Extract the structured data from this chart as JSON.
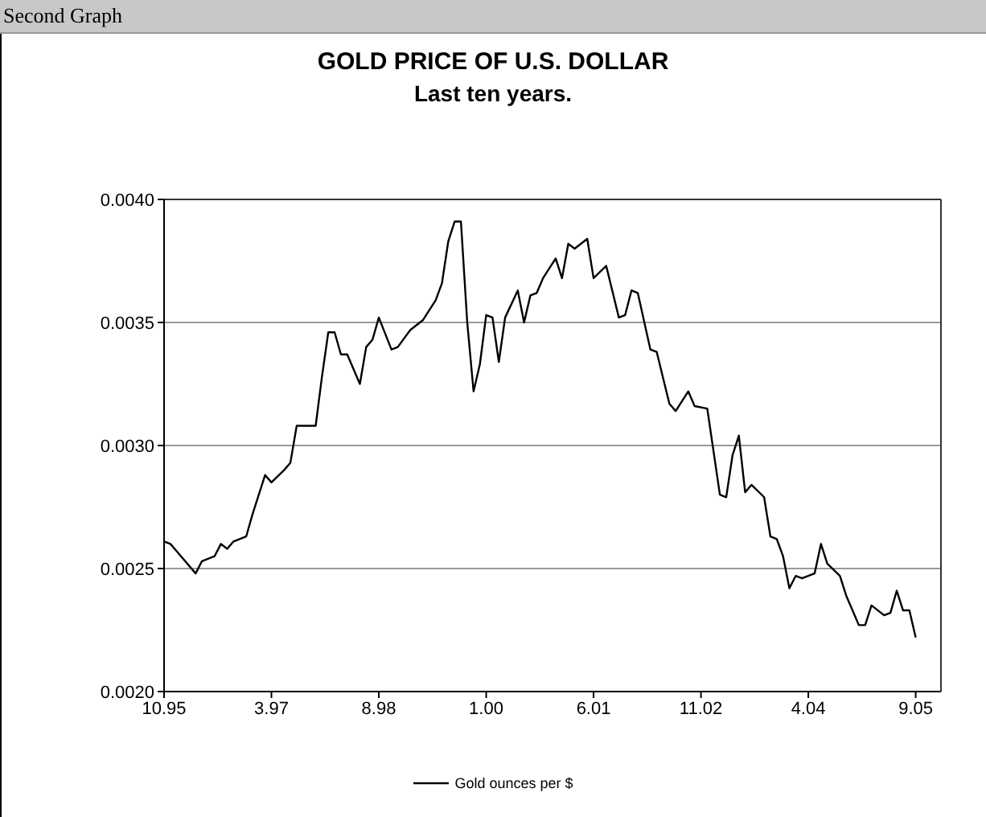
{
  "chart_data": {
    "type": "line",
    "title": "GOLD PRICE OF U.S. DOLLAR",
    "subtitle": "Last ten years.",
    "annotations": [
      "Second Graph"
    ],
    "x": [
      "1995-10",
      "1995-11",
      "1995-12",
      "1996-03",
      "1996-04",
      "1996-06",
      "1996-07",
      "1996-08",
      "1996-09",
      "1996-11",
      "1996-12",
      "1997-02",
      "1997-03",
      "1997-05",
      "1997-06",
      "1997-07",
      "1997-10",
      "1997-11",
      "1997-12",
      "1998-01",
      "1998-02",
      "1998-03",
      "1998-05",
      "1998-06",
      "1998-07",
      "1998-08",
      "1998-10",
      "1998-11",
      "1999-01",
      "1999-03",
      "1999-05",
      "1999-06",
      "1999-07",
      "1999-08",
      "1999-09",
      "1999-10",
      "1999-11",
      "1999-12",
      "2000-01",
      "2000-02",
      "2000-03",
      "2000-04",
      "2000-06",
      "2000-07",
      "2000-08",
      "2000-09",
      "2000-10",
      "2000-12",
      "2001-01",
      "2001-02",
      "2001-03",
      "2001-05",
      "2001-06",
      "2001-08",
      "2001-10",
      "2001-11",
      "2001-12",
      "2002-01",
      "2002-03",
      "2002-04",
      "2002-06",
      "2002-07",
      "2002-09",
      "2002-10",
      "2002-12",
      "2003-02",
      "2003-03",
      "2003-04",
      "2003-05",
      "2003-06",
      "2003-07",
      "2003-09",
      "2003-10",
      "2003-11",
      "2003-12",
      "2004-01",
      "2004-02",
      "2004-03",
      "2004-05",
      "2004-06",
      "2004-07",
      "2004-09",
      "2004-10",
      "2004-12",
      "2005-01",
      "2005-02",
      "2005-04",
      "2005-05",
      "2005-06",
      "2005-07",
      "2005-08",
      "2005-09"
    ],
    "series": [
      {
        "name": "Gold ounces per $",
        "color": "#000000",
        "values": [
          0.00261,
          0.0026,
          0.00257,
          0.00248,
          0.00253,
          0.00255,
          0.0026,
          0.00258,
          0.00261,
          0.00263,
          0.00272,
          0.00288,
          0.00285,
          0.0029,
          0.00293,
          0.00308,
          0.00308,
          0.00328,
          0.00346,
          0.00346,
          0.00337,
          0.00337,
          0.00325,
          0.0034,
          0.00343,
          0.00352,
          0.00339,
          0.0034,
          0.00347,
          0.00351,
          0.00359,
          0.00366,
          0.00383,
          0.00391,
          0.00391,
          0.0035,
          0.00322,
          0.00333,
          0.00353,
          0.00352,
          0.00334,
          0.00352,
          0.00363,
          0.0035,
          0.00361,
          0.00362,
          0.00368,
          0.00376,
          0.00368,
          0.00382,
          0.0038,
          0.00384,
          0.00368,
          0.00373,
          0.00352,
          0.00353,
          0.00363,
          0.00362,
          0.00339,
          0.00338,
          0.00317,
          0.00314,
          0.00322,
          0.00316,
          0.00315,
          0.0028,
          0.00279,
          0.00296,
          0.00304,
          0.00281,
          0.00284,
          0.00279,
          0.00263,
          0.00262,
          0.00255,
          0.00242,
          0.00247,
          0.00246,
          0.00248,
          0.0026,
          0.00252,
          0.00247,
          0.00239,
          0.00227,
          0.00227,
          0.00235,
          0.00231,
          0.00232,
          0.00241,
          0.00233,
          0.00233,
          0.00222
        ]
      }
    ],
    "xlim": [
      "1995-10",
      "2006-01"
    ],
    "xticks": [
      {
        "value": "1995-10",
        "label": "10.95"
      },
      {
        "value": "1997-03",
        "label": "3.97"
      },
      {
        "value": "1998-08",
        "label": "8.98"
      },
      {
        "value": "2000-01",
        "label": "1.00"
      },
      {
        "value": "2001-06",
        "label": "6.01"
      },
      {
        "value": "2002-11",
        "label": "11.02"
      },
      {
        "value": "2004-04",
        "label": "4.04"
      },
      {
        "value": "2005-09",
        "label": "9.05"
      }
    ],
    "ylim": [
      0.002,
      0.004
    ],
    "yticks": [
      {
        "value": 0.002,
        "label": "0.0020"
      },
      {
        "value": 0.0025,
        "label": "0.0025"
      },
      {
        "value": 0.003,
        "label": "0.0030"
      },
      {
        "value": 0.0035,
        "label": "0.0035"
      },
      {
        "value": 0.004,
        "label": "0.0040"
      }
    ],
    "grid": "y",
    "legend": "bottom",
    "marker": "none",
    "line_style": "solid"
  }
}
